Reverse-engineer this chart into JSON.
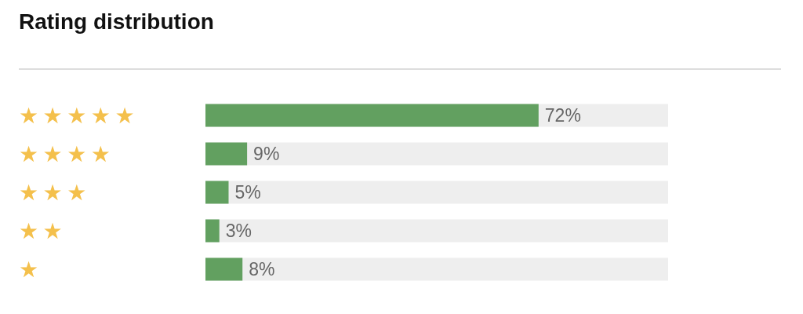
{
  "chart_data": {
    "type": "bar",
    "orientation": "horizontal",
    "title": "Rating distribution",
    "categories": [
      "★★★★★",
      "★★★★",
      "★★★",
      "★★",
      "★"
    ],
    "values": [
      72,
      9,
      5,
      3,
      8
    ],
    "color": "#62a060",
    "value_labels": [
      "72%",
      "9%",
      "5%",
      "3%",
      "8%"
    ],
    "bands": [
      {
        "axis": "x",
        "from": 0,
        "to": 100,
        "color": "#eeeeee"
      }
    ],
    "xlim": [
      0,
      100
    ],
    "tick_labels": "y"
  }
}
